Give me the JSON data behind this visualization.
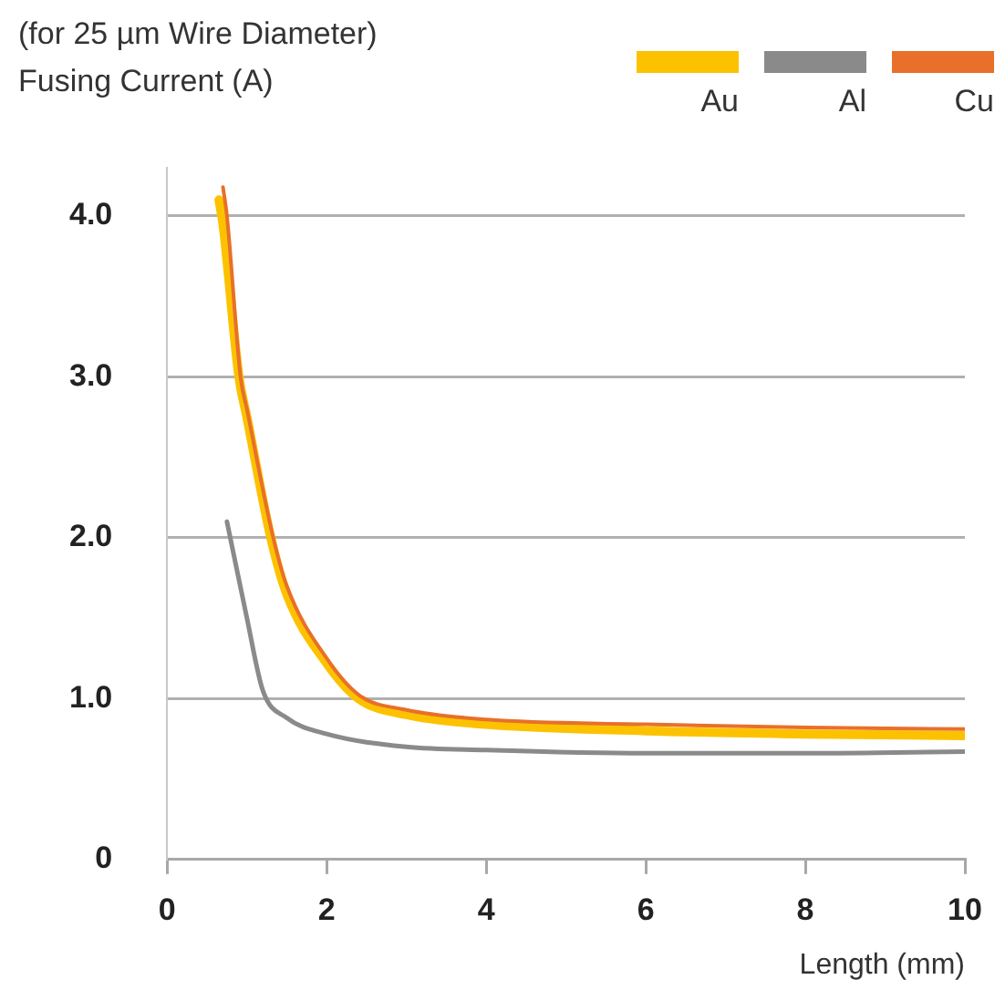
{
  "chart_data": {
    "type": "line",
    "title": "(for 25 µm Wire Diameter)",
    "ylabel": "Fusing Current (A)",
    "xlabel": "Length (mm)",
    "xlim": [
      0,
      10
    ],
    "xticks": [
      0,
      2,
      4,
      6,
      8,
      10
    ],
    "yticks": [
      0,
      {
        "value": 1,
        "label": "1.0"
      },
      {
        "value": 2,
        "label": "2.0"
      },
      {
        "value": 3,
        "label": "3.0"
      },
      {
        "value": 4,
        "label": "4.0"
      }
    ],
    "ylim": [
      0,
      4.3
    ],
    "grid": "y",
    "legend": "top right",
    "marker": "none",
    "line_style": "solid",
    "series": [
      {
        "name": "Au",
        "color": "#fcc200",
        "x": [
          0.65,
          0.7,
          0.9,
          1.0,
          1.3,
          1.5,
          2.0,
          2.4,
          3.0,
          4.0,
          6.0,
          8.0,
          10.0
        ],
        "values": [
          4.1,
          3.95,
          3.0,
          2.75,
          2.0,
          1.65,
          1.22,
          1.0,
          0.9,
          0.84,
          0.8,
          0.78,
          0.77
        ]
      },
      {
        "name": "Al",
        "color": "#8a8a8a",
        "x": [
          0.75,
          1.0,
          1.2,
          1.5,
          2.0,
          3.0,
          4.0,
          6.0,
          8.0,
          10.0
        ],
        "values": [
          2.1,
          1.5,
          1.05,
          0.88,
          0.78,
          0.7,
          0.68,
          0.66,
          0.66,
          0.67
        ]
      },
      {
        "name": "Cu",
        "color": "#e8702a",
        "x": [
          0.7,
          0.75,
          0.92,
          1.0,
          1.33,
          1.5,
          2.0,
          2.41,
          3.0,
          4.0,
          6.0,
          8.0,
          10.0
        ],
        "values": [
          4.18,
          4.0,
          3.0,
          2.8,
          2.0,
          1.7,
          1.25,
          1.02,
          0.93,
          0.87,
          0.84,
          0.82,
          0.81
        ]
      }
    ]
  }
}
